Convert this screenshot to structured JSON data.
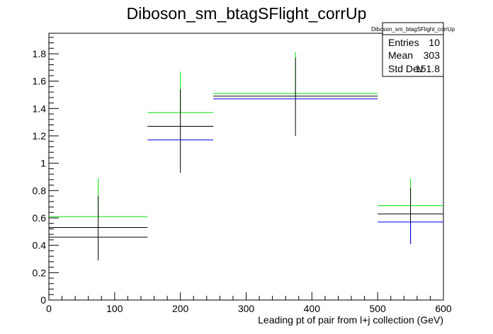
{
  "title": "Diboson_sm_btagSFlight_corrUp",
  "stats": {
    "name": "Diboson_sm_btagSFlight_corrUp",
    "rows": [
      {
        "label": "Entries",
        "value": "10"
      },
      {
        "label": "Mean",
        "value": "303"
      },
      {
        "label": "Std Dev",
        "value": "151.8"
      }
    ]
  },
  "chart_data": {
    "type": "scatter",
    "title": "Diboson_sm_btagSFlight_corrUp",
    "xlabel": "Leading pt of pair from l+j collection (GeV)",
    "ylabel": "",
    "xlim": [
      0,
      600
    ],
    "ylim": [
      0,
      1.95
    ],
    "x_ticks": [
      0,
      100,
      200,
      300,
      400,
      500,
      600
    ],
    "y_ticks": [
      0,
      0.2,
      0.4,
      0.6,
      0.8,
      1,
      1.2,
      1.4,
      1.6,
      1.8
    ],
    "grid": false,
    "colors": {
      "green": "#00e000",
      "black": "#000000",
      "blue": "#0000ff"
    },
    "bins": [
      {
        "x_low": 0,
        "x_high": 150,
        "center": 75
      },
      {
        "x_low": 150,
        "x_high": 250,
        "center": 200
      },
      {
        "x_low": 250,
        "x_high": 500,
        "center": 375
      },
      {
        "x_low": 500,
        "x_high": 600,
        "center": 550
      }
    ],
    "series": [
      {
        "color": "green",
        "values": [
          0.61,
          1.37,
          1.51,
          0.69
        ],
        "err_low": [
          0.61,
          1.37,
          1.51,
          0.69
        ],
        "err_high": [
          0.89,
          1.67,
          1.81,
          0.89
        ]
      },
      {
        "color": "black",
        "values": [
          0.53,
          1.27,
          1.49,
          0.63
        ],
        "err_low": [
          0.29,
          0.93,
          1.2,
          0.41
        ],
        "err_high": [
          0.76,
          1.54,
          1.77,
          0.82
        ]
      },
      {
        "color": "black",
        "values": [
          0.46,
          null,
          null,
          null
        ],
        "err_low": [
          null,
          null,
          null,
          null
        ],
        "err_high": [
          null,
          null,
          null,
          null
        ]
      },
      {
        "color": "blue",
        "values": [
          null,
          1.17,
          1.47,
          0.57
        ],
        "err_low": [
          null,
          1.17,
          1.47,
          0.41
        ],
        "err_high": [
          null,
          1.17,
          1.47,
          0.57
        ]
      }
    ]
  }
}
